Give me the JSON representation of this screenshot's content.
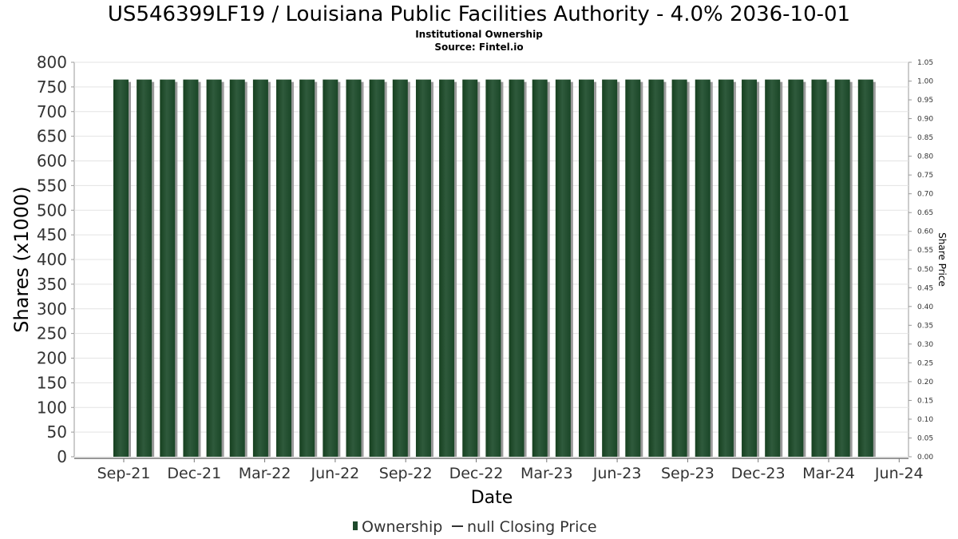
{
  "chart_data": {
    "type": "bar",
    "title": "US546399LF19 / Louisiana Public Facilities Authority - 4.0% 2036-10-01",
    "subtitle_line1": "Institutional Ownership",
    "subtitle_line2": "Source: Fintel.io",
    "xlabel": "Date",
    "ylabel": "Shares (x1000)",
    "y2label": "Share Price",
    "ylim": [
      0,
      800
    ],
    "y2lim": [
      0,
      1.05
    ],
    "yticks": [
      "0",
      "50",
      "100",
      "150",
      "200",
      "250",
      "300",
      "350",
      "400",
      "450",
      "500",
      "550",
      "600",
      "650",
      "700",
      "750",
      "800"
    ],
    "y2ticks": [
      "0.00",
      "0.05",
      "0.10",
      "0.15",
      "0.20",
      "0.25",
      "0.30",
      "0.35",
      "0.40",
      "0.45",
      "0.50",
      "0.55",
      "0.60",
      "0.65",
      "0.70",
      "0.75",
      "0.80",
      "0.85",
      "0.90",
      "0.95",
      "1.00",
      "1.05"
    ],
    "xticks": [
      "Sep-21",
      "Dec-21",
      "Mar-22",
      "Jun-22",
      "Sep-22",
      "Dec-22",
      "Mar-23",
      "Jun-23",
      "Sep-23",
      "Dec-23",
      "Mar-24",
      "Jun-24"
    ],
    "series": [
      {
        "name": "Ownership",
        "color": "#1e4a2c",
        "values": [
          765,
          765,
          765,
          765,
          765,
          765,
          765,
          765,
          765,
          765,
          765,
          765,
          765,
          765,
          765,
          765,
          765,
          765,
          765,
          765,
          765,
          765,
          765,
          765,
          765,
          765,
          765,
          765,
          765,
          765,
          765,
          765,
          765
        ]
      }
    ],
    "legend": {
      "position": "bottom",
      "items": [
        "Ownership",
        "null Closing Price"
      ]
    },
    "grid": true
  }
}
